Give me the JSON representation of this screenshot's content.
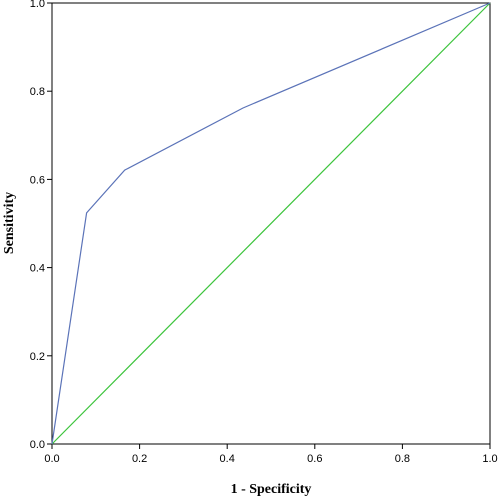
{
  "chart_data": {
    "type": "line",
    "xlabel": "1 - Specificity",
    "ylabel": "Sensitivity",
    "xlim": [
      0,
      1
    ],
    "ylim": [
      0,
      1
    ],
    "x_ticks": [
      "0.0",
      "0.2",
      "0.4",
      "0.6",
      "0.8",
      "1.0"
    ],
    "y_ticks": [
      "0.0",
      "0.2",
      "0.4",
      "0.6",
      "0.8",
      "1.0"
    ],
    "grid": false,
    "series": [
      {
        "color": "#5b73b8",
        "points": [
          {
            "x": 0.0,
            "y": 0.0
          },
          {
            "x": 0.079,
            "y": 0.524
          },
          {
            "x": 0.166,
            "y": 0.621
          },
          {
            "x": 0.436,
            "y": 0.762
          },
          {
            "x": 1.0,
            "y": 1.0
          }
        ]
      },
      {
        "color": "#3cc43c",
        "points": [
          {
            "x": 0.0,
            "y": 0.0
          },
          {
            "x": 1.0,
            "y": 1.0
          }
        ]
      }
    ]
  }
}
